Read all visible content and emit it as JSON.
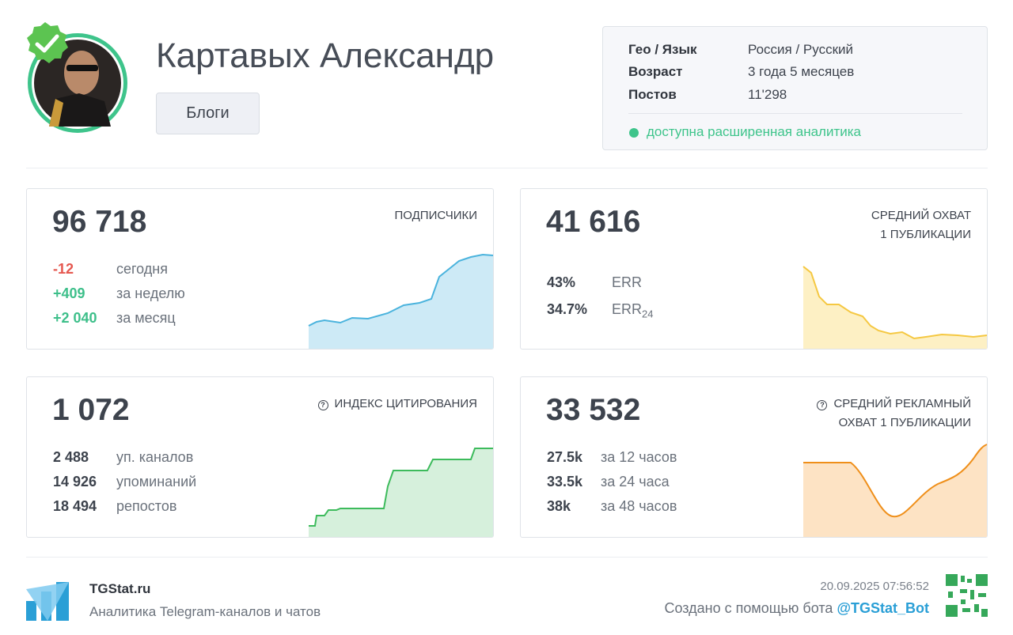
{
  "header": {
    "name": "Картавых Александр",
    "tag": "Блоги"
  },
  "info": {
    "rows": [
      {
        "label": "Гео / Язык",
        "value": "Россия / Русский"
      },
      {
        "label": "Возраст",
        "value": "3 года 5 месяцев"
      },
      {
        "label": "Постов",
        "value": "11'298"
      }
    ],
    "status": "доступна расширенная аналитика"
  },
  "cards": [
    {
      "value": "96 718",
      "title_lines": [
        "ПОДПИСЧИКИ"
      ],
      "stats": [
        {
          "value": "-12",
          "label": "сегодня",
          "color": "#e5574f"
        },
        {
          "value": "+409",
          "label": "за неделю",
          "color": "#3dbf8a"
        },
        {
          "value": "+2 040",
          "label": "за месяц",
          "color": "#3dbf8a"
        }
      ]
    },
    {
      "value": "41 616",
      "title_lines": [
        "СРЕДНИЙ ОХВАТ",
        "1 ПУБЛИКАЦИИ"
      ],
      "stats": [
        {
          "value": "43%",
          "label": "ERR"
        },
        {
          "value": "34.7%",
          "label": "ERR",
          "label_sub": "24"
        }
      ]
    },
    {
      "value": "1 072",
      "title_lines": [
        "ИНДЕКС ЦИТИРОВАНИЯ"
      ],
      "stats": [
        {
          "value": "2 488",
          "label": "уп. каналов"
        },
        {
          "value": "14 926",
          "label": "упоминаний"
        },
        {
          "value": "18 494",
          "label": "репостов"
        }
      ]
    },
    {
      "value": "33 532",
      "title_lines": [
        "СРЕДНИЙ РЕКЛАМНЫЙ",
        "ОХВАТ 1 ПУБЛИКАЦИИ"
      ],
      "stats": [
        {
          "value": "27.5k",
          "label": "за 12 часов"
        },
        {
          "value": "33.5k",
          "label": "за 24 часа"
        },
        {
          "value": "38k",
          "label": "за 48 часов"
        }
      ]
    }
  ],
  "footer": {
    "site": "TGStat.ru",
    "tagline": "Аналитика Telegram-каналов и чатов",
    "date": "20.09.2025 07:56:52",
    "credit": "Создано с помощью бота",
    "bot": "@TGStat_Bot"
  }
}
